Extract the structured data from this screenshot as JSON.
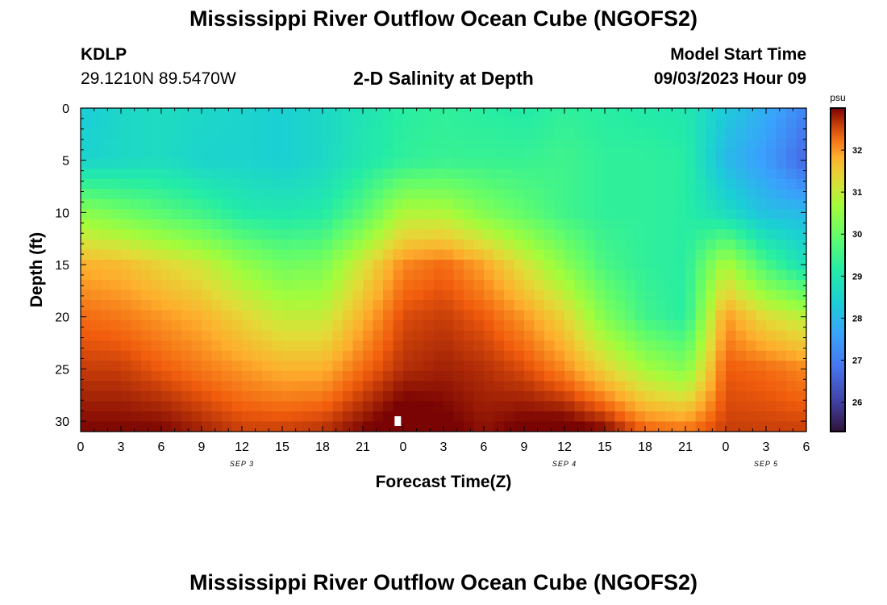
{
  "header": {
    "title": "Mississippi River Outflow Ocean Cube (NGOFS2)",
    "station": "KDLP",
    "coords": "29.1210N  89.5470W",
    "subtitle": "2-D Salinity at Depth",
    "model_start_label": "Model Start Time",
    "model_start_value": "09/03/2023 Hour 09"
  },
  "footer": {
    "title": "Mississippi River Outflow Ocean Cube (NGOFS2)"
  },
  "chart_data": {
    "type": "heatmap",
    "title": "2-D Salinity at Depth",
    "xlabel": "Forecast Time(Z)",
    "ylabel": "Depth (ft)",
    "x_range_hours": [
      0,
      54
    ],
    "y_range_ft": [
      0,
      31
    ],
    "x_ticks": [
      {
        "hour": 0,
        "label": "0"
      },
      {
        "hour": 3,
        "label": "3"
      },
      {
        "hour": 6,
        "label": "6"
      },
      {
        "hour": 9,
        "label": "9"
      },
      {
        "hour": 12,
        "label": "12"
      },
      {
        "hour": 15,
        "label": "15"
      },
      {
        "hour": 18,
        "label": "18"
      },
      {
        "hour": 21,
        "label": "21"
      },
      {
        "hour": 24,
        "label": "0"
      },
      {
        "hour": 27,
        "label": "3"
      },
      {
        "hour": 30,
        "label": "6"
      },
      {
        "hour": 33,
        "label": "9"
      },
      {
        "hour": 36,
        "label": "12"
      },
      {
        "hour": 39,
        "label": "15"
      },
      {
        "hour": 42,
        "label": "18"
      },
      {
        "hour": 45,
        "label": "21"
      },
      {
        "hour": 48,
        "label": "0"
      },
      {
        "hour": 51,
        "label": "3"
      },
      {
        "hour": 54,
        "label": "6"
      }
    ],
    "date_labels": [
      {
        "hour": 12,
        "label": "SEP 3"
      },
      {
        "hour": 36,
        "label": "SEP 4"
      },
      {
        "hour": 51,
        "label": "SEP 5"
      }
    ],
    "y_ticks": [
      0,
      5,
      10,
      15,
      20,
      25,
      30
    ],
    "colorbar": {
      "unit": "psu",
      "min": 25.3,
      "max": 33.0,
      "ticks": [
        26,
        27,
        28,
        29,
        30,
        31,
        32
      ]
    },
    "hours": [
      0,
      3,
      6,
      9,
      12,
      15,
      18,
      21,
      24,
      27,
      30,
      33,
      36,
      39,
      42,
      45,
      48,
      51,
      54
    ],
    "depths_ft": [
      0,
      5,
      10,
      15,
      20,
      25,
      31
    ],
    "salinity_psu": [
      [
        28.3,
        28.6,
        28.7,
        28.6,
        28.5,
        28.4,
        28.6,
        28.9,
        29.2,
        29.3,
        29.2,
        29.1,
        29.3,
        29.2,
        29.1,
        29.0,
        28.3,
        27.8,
        27.1
      ],
      [
        28.5,
        28.6,
        28.7,
        28.5,
        28.5,
        28.4,
        28.6,
        29.0,
        29.3,
        29.4,
        29.4,
        29.4,
        29.5,
        29.3,
        29.3,
        29.2,
        28.0,
        27.5,
        26.6
      ],
      [
        30.4,
        30.1,
        29.8,
        29.5,
        29.1,
        29.0,
        29.1,
        29.8,
        30.8,
        30.8,
        30.3,
        29.9,
        29.5,
        29.3,
        29.3,
        29.2,
        28.7,
        28.1,
        28.0
      ],
      [
        31.8,
        31.7,
        31.4,
        31.1,
        30.5,
        30.1,
        30.2,
        31.2,
        32.1,
        32.3,
        31.9,
        31.2,
        30.4,
        29.6,
        29.3,
        29.2,
        30.8,
        29.6,
        28.8
      ],
      [
        32.3,
        32.2,
        32.0,
        31.8,
        31.4,
        31.0,
        31.0,
        31.8,
        32.5,
        32.6,
        32.4,
        32.0,
        31.4,
        30.3,
        29.5,
        29.2,
        32.0,
        31.3,
        30.9
      ],
      [
        32.6,
        32.6,
        32.4,
        32.2,
        32.0,
        31.8,
        31.8,
        32.3,
        32.7,
        32.8,
        32.7,
        32.5,
        32.1,
        31.4,
        30.7,
        30.3,
        32.4,
        32.3,
        32.1
      ],
      [
        33.0,
        33.0,
        33.0,
        32.8,
        32.6,
        32.6,
        32.7,
        33.0,
        33.3,
        33.1,
        32.9,
        33.1,
        33.2,
        33.0,
        32.4,
        32.3,
        32.6,
        32.6,
        32.6
      ]
    ]
  }
}
